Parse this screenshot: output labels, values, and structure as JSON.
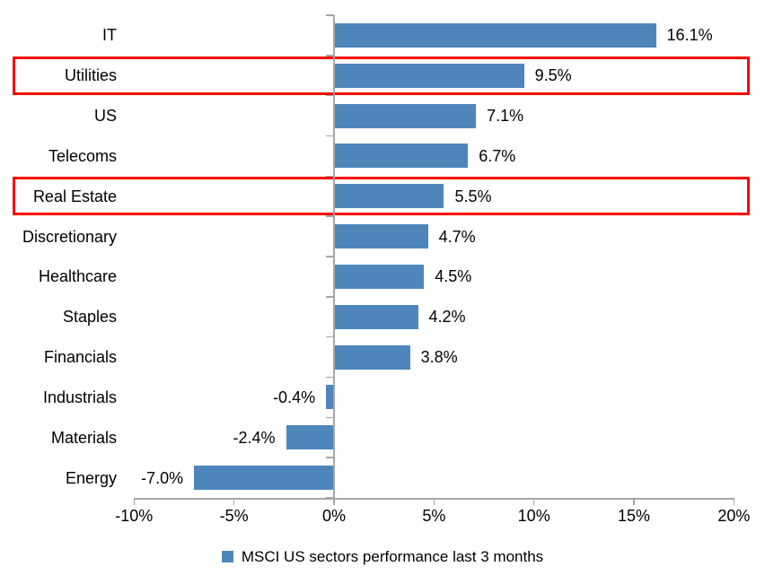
{
  "chart_data": {
    "type": "bar",
    "orientation": "horizontal",
    "title": "",
    "xlabel": "",
    "ylabel": "",
    "categories": [
      "IT",
      "Utilities",
      "US",
      "Telecoms",
      "Real Estate",
      "Discretionary",
      "Healthcare",
      "Staples",
      "Financials",
      "Industrials",
      "Materials",
      "Energy"
    ],
    "values": [
      16.1,
      9.5,
      7.1,
      6.7,
      5.5,
      4.7,
      4.5,
      4.2,
      3.8,
      -0.4,
      -2.4,
      -7.0
    ],
    "value_labels": [
      "16.1%",
      "9.5%",
      "7.1%",
      "6.7%",
      "5.5%",
      "4.7%",
      "4.5%",
      "4.2%",
      "3.8%",
      "-0.4%",
      "-2.4%",
      "-7.0%"
    ],
    "highlighted_categories": [
      "Utilities",
      "Real Estate"
    ],
    "xlim": [
      -10,
      20
    ],
    "x_ticks": [
      {
        "v": -10,
        "label": "-10%"
      },
      {
        "v": -5,
        "label": "-5%"
      },
      {
        "v": 0,
        "label": "0%"
      },
      {
        "v": 5,
        "label": "5%"
      },
      {
        "v": 10,
        "label": "10%"
      },
      {
        "v": 15,
        "label": "15%"
      },
      {
        "v": 20,
        "label": "20%"
      }
    ],
    "grid": false,
    "legend": "MSCI US sectors performance last 3 months",
    "legend_position": "bottom-center",
    "colors": {
      "bar": "#4E86BC",
      "highlight_border": "#FF0000",
      "axis": "#A6A6A6",
      "text": "#000000",
      "background": "#FFFFFF"
    }
  }
}
